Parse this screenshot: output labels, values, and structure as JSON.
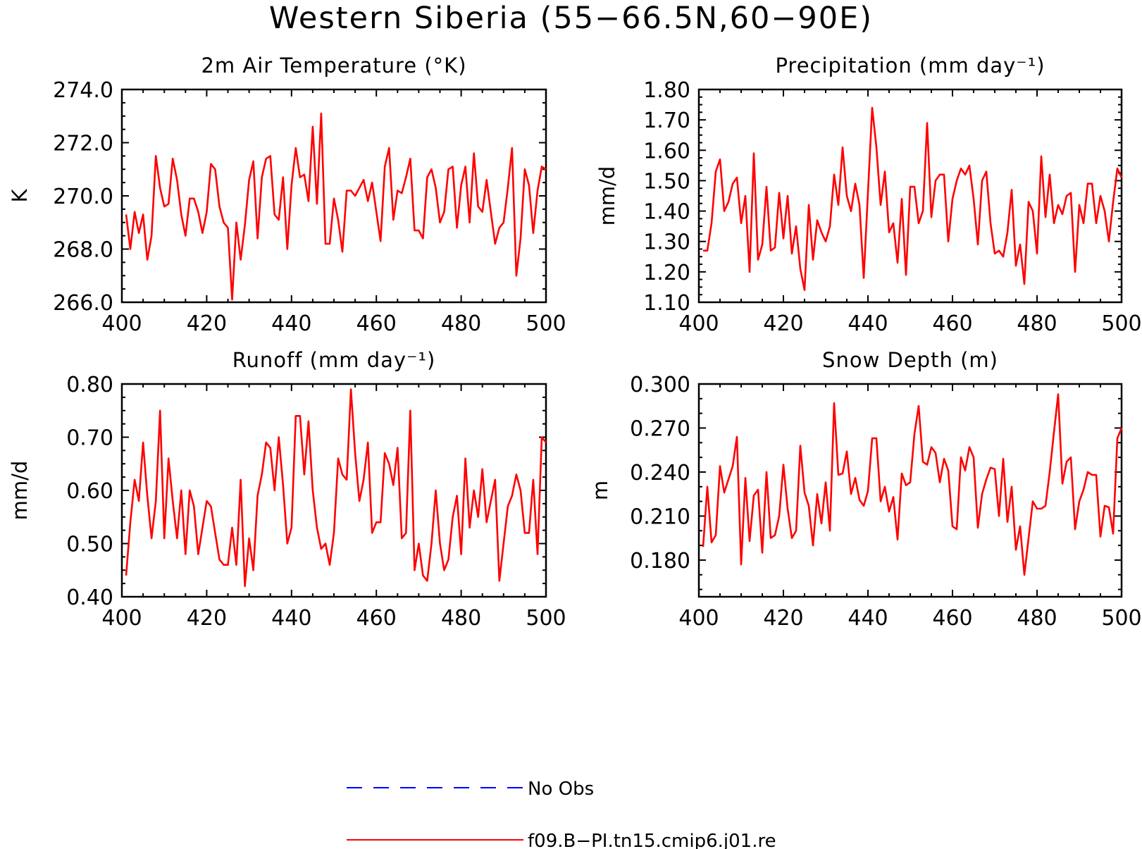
{
  "title": "Western Siberia (55−66.5N,60−90E)",
  "colors": {
    "model": "#ff0000",
    "obs": "#0000ff",
    "axis": "#000000"
  },
  "legend": {
    "items": [
      {
        "label": "No Obs",
        "color": "#0000ff",
        "style": "dashed"
      },
      {
        "label": "f09.B−PI.tn15.cmip6.j01.re",
        "color": "#ff0000",
        "style": "solid"
      }
    ]
  },
  "chart_data": [
    {
      "type": "line",
      "title": "2m Air Temperature (°K)",
      "ylabel": "K",
      "xlim": [
        400,
        500
      ],
      "ylim": [
        266,
        274
      ],
      "xticks": [
        "400",
        "420",
        "440",
        "460",
        "480",
        "500"
      ],
      "yticks": [
        "266.0",
        "268.0",
        "270.0",
        "272.0",
        "274.0"
      ],
      "series": [
        {
          "name": "f09.B−PI.tn15.cmip6.j01.re",
          "x_start": 401,
          "values": [
            269.3,
            268,
            269.4,
            268.6,
            269.3,
            267.6,
            268.5,
            271.5,
            270.3,
            269.6,
            269.7,
            271.4,
            270.6,
            269.3,
            268.5,
            269.9,
            269.9,
            269.4,
            268.6,
            269.4,
            271.2,
            271,
            269.6,
            269,
            268.8,
            266.1,
            269,
            267.6,
            268.9,
            270.6,
            271.3,
            268.4,
            270.7,
            271.4,
            271.5,
            269.3,
            269.1,
            270.7,
            268,
            270.4,
            271.8,
            270.7,
            270.8,
            269.8,
            272.6,
            269.7,
            273.1,
            268.2,
            268.2,
            269.9,
            269.1,
            267.9,
            270.2,
            270.2,
            270,
            270.3,
            270.6,
            269.8,
            270.5,
            269.4,
            268.3,
            271.1,
            271.8,
            269.1,
            270.2,
            270.1,
            270.7,
            271.4,
            268.7,
            268.7,
            268.4,
            270.7,
            271,
            270.3,
            269,
            269.4,
            271,
            271.1,
            268.8,
            270.4,
            271.1,
            269,
            271.6,
            269.6,
            269.4,
            270.6,
            269.4,
            268.2,
            268.8,
            269,
            270.3,
            271.8,
            267,
            268.4,
            271,
            270.4,
            268.6,
            270.2,
            271.1,
            271
          ]
        }
      ]
    },
    {
      "type": "line",
      "title": "Precipitation (mm day⁻¹)",
      "ylabel": "mm/d",
      "xlim": [
        400,
        500
      ],
      "ylim": [
        1.1,
        1.8
      ],
      "xticks": [
        "400",
        "420",
        "440",
        "460",
        "480",
        "500"
      ],
      "yticks": [
        "1.10",
        "1.20",
        "1.30",
        "1.40",
        "1.50",
        "1.60",
        "1.70",
        "1.80"
      ],
      "series": [
        {
          "name": "f09.B−PI.tn15.cmip6.j01.re",
          "x_start": 401,
          "values": [
            1.27,
            1.27,
            1.36,
            1.53,
            1.57,
            1.4,
            1.43,
            1.49,
            1.51,
            1.36,
            1.45,
            1.2,
            1.59,
            1.24,
            1.29,
            1.48,
            1.27,
            1.28,
            1.46,
            1.31,
            1.45,
            1.26,
            1.35,
            1.21,
            1.14,
            1.42,
            1.24,
            1.37,
            1.33,
            1.3,
            1.35,
            1.52,
            1.42,
            1.61,
            1.45,
            1.4,
            1.49,
            1.42,
            1.18,
            1.46,
            1.74,
            1.61,
            1.42,
            1.53,
            1.33,
            1.36,
            1.23,
            1.44,
            1.19,
            1.48,
            1.48,
            1.36,
            1.4,
            1.69,
            1.38,
            1.5,
            1.52,
            1.52,
            1.3,
            1.44,
            1.5,
            1.54,
            1.52,
            1.55,
            1.44,
            1.29,
            1.5,
            1.53,
            1.36,
            1.26,
            1.27,
            1.25,
            1.33,
            1.47,
            1.22,
            1.29,
            1.16,
            1.43,
            1.4,
            1.26,
            1.58,
            1.38,
            1.52,
            1.36,
            1.42,
            1.39,
            1.45,
            1.46,
            1.2,
            1.42,
            1.36,
            1.49,
            1.49,
            1.36,
            1.45,
            1.4,
            1.3,
            1.43,
            1.54,
            1.51
          ]
        }
      ]
    },
    {
      "type": "line",
      "title": "Runoff (mm day⁻¹)",
      "ylabel": "mm/d",
      "xlim": [
        400,
        500
      ],
      "ylim": [
        0.4,
        0.8
      ],
      "xticks": [
        "400",
        "420",
        "440",
        "460",
        "480",
        "500"
      ],
      "yticks": [
        "0.40",
        "0.50",
        "0.60",
        "0.70",
        "0.80"
      ],
      "series": [
        {
          "name": "f09.B−PI.tn15.cmip6.j01.re",
          "x_start": 401,
          "values": [
            0.44,
            0.54,
            0.62,
            0.58,
            0.69,
            0.59,
            0.51,
            0.58,
            0.75,
            0.51,
            0.66,
            0.58,
            0.51,
            0.6,
            0.48,
            0.6,
            0.57,
            0.48,
            0.53,
            0.58,
            0.57,
            0.52,
            0.47,
            0.46,
            0.46,
            0.53,
            0.46,
            0.62,
            0.42,
            0.51,
            0.45,
            0.59,
            0.63,
            0.69,
            0.68,
            0.6,
            0.7,
            0.61,
            0.5,
            0.53,
            0.74,
            0.74,
            0.63,
            0.73,
            0.6,
            0.53,
            0.49,
            0.5,
            0.46,
            0.52,
            0.66,
            0.63,
            0.62,
            0.79,
            0.67,
            0.58,
            0.62,
            0.69,
            0.52,
            0.54,
            0.54,
            0.67,
            0.65,
            0.61,
            0.68,
            0.51,
            0.52,
            0.75,
            0.45,
            0.5,
            0.44,
            0.43,
            0.5,
            0.6,
            0.5,
            0.45,
            0.47,
            0.55,
            0.59,
            0.48,
            0.66,
            0.53,
            0.6,
            0.55,
            0.64,
            0.54,
            0.58,
            0.62,
            0.43,
            0.5,
            0.57,
            0.59,
            0.63,
            0.6,
            0.52,
            0.52,
            0.62,
            0.48,
            0.7,
            0.69
          ]
        }
      ]
    },
    {
      "type": "line",
      "title": "Snow Depth (m)",
      "ylabel": "m",
      "xlim": [
        400,
        500
      ],
      "ylim": [
        0.155,
        0.3
      ],
      "xticks": [
        "400",
        "420",
        "440",
        "460",
        "480",
        "500"
      ],
      "yticks": [
        "0.180",
        "0.210",
        "0.240",
        "0.270",
        "0.300"
      ],
      "series": [
        {
          "name": "f09.B−PI.tn15.cmip6.j01.re",
          "x_start": 401,
          "values": [
            0.189,
            0.23,
            0.192,
            0.197,
            0.244,
            0.226,
            0.235,
            0.244,
            0.264,
            0.177,
            0.236,
            0.193,
            0.224,
            0.228,
            0.185,
            0.24,
            0.195,
            0.197,
            0.21,
            0.245,
            0.215,
            0.195,
            0.2,
            0.258,
            0.226,
            0.217,
            0.19,
            0.225,
            0.205,
            0.233,
            0.2,
            0.287,
            0.238,
            0.239,
            0.254,
            0.225,
            0.236,
            0.221,
            0.217,
            0.227,
            0.263,
            0.263,
            0.22,
            0.23,
            0.213,
            0.223,
            0.194,
            0.239,
            0.231,
            0.233,
            0.266,
            0.285,
            0.247,
            0.245,
            0.257,
            0.253,
            0.233,
            0.249,
            0.241,
            0.203,
            0.201,
            0.25,
            0.241,
            0.257,
            0.25,
            0.202,
            0.225,
            0.235,
            0.243,
            0.242,
            0.21,
            0.249,
            0.206,
            0.23,
            0.187,
            0.203,
            0.17,
            0.195,
            0.22,
            0.215,
            0.215,
            0.217,
            0.24,
            0.267,
            0.293,
            0.232,
            0.247,
            0.25,
            0.201,
            0.22,
            0.228,
            0.24,
            0.238,
            0.238,
            0.196,
            0.217,
            0.216,
            0.198,
            0.263,
            0.27
          ]
        }
      ]
    }
  ]
}
